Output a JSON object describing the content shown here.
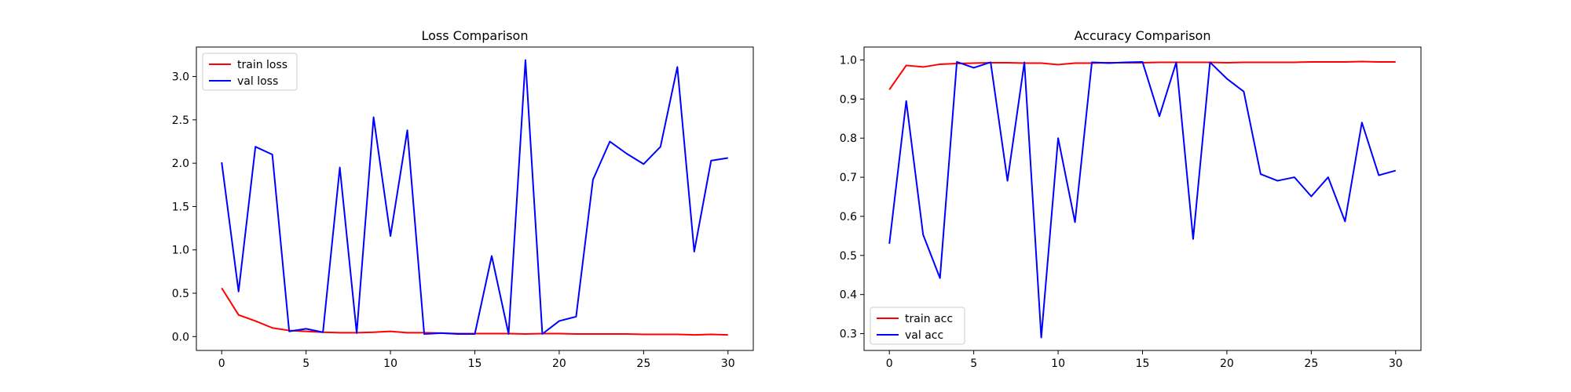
{
  "chart_data": [
    {
      "type": "line",
      "title": "Loss Comparison",
      "xlabel": "",
      "ylabel": "",
      "xlim": [
        -1.5,
        31.5
      ],
      "ylim": [
        -0.16,
        3.34
      ],
      "xticks": [
        0,
        5,
        10,
        15,
        20,
        25,
        30
      ],
      "yticks": [
        0.0,
        0.5,
        1.0,
        1.5,
        2.0,
        2.5,
        3.0
      ],
      "ytick_format": 1,
      "grid": false,
      "legend": "upper-left",
      "x": [
        0,
        1,
        2,
        3,
        4,
        5,
        6,
        7,
        8,
        9,
        10,
        11,
        12,
        13,
        14,
        15,
        16,
        17,
        18,
        19,
        20,
        21,
        22,
        23,
        24,
        25,
        26,
        27,
        28,
        29,
        30
      ],
      "series": [
        {
          "name": "train loss",
          "color": "#ff0000",
          "values": [
            0.56,
            0.25,
            0.18,
            0.1,
            0.07,
            0.06,
            0.05,
            0.045,
            0.045,
            0.05,
            0.06,
            0.045,
            0.045,
            0.04,
            0.035,
            0.035,
            0.035,
            0.035,
            0.03,
            0.035,
            0.035,
            0.03,
            0.03,
            0.03,
            0.03,
            0.025,
            0.025,
            0.025,
            0.02,
            0.025,
            0.02
          ]
        },
        {
          "name": "val loss",
          "color": "#0000ff",
          "values": [
            2.01,
            0.52,
            2.19,
            2.1,
            0.06,
            0.09,
            0.05,
            1.95,
            0.04,
            2.53,
            1.16,
            2.38,
            0.03,
            0.04,
            0.03,
            0.03,
            0.93,
            0.03,
            3.19,
            0.03,
            0.18,
            0.23,
            1.81,
            2.25,
            2.11,
            1.99,
            2.19,
            3.11,
            0.98,
            2.03,
            2.06
          ]
        }
      ]
    },
    {
      "type": "line",
      "title": "Accuracy Comparison",
      "xlabel": "",
      "ylabel": "",
      "xlim": [
        -1.5,
        31.5
      ],
      "ylim": [
        0.257,
        1.033
      ],
      "xticks": [
        0,
        5,
        10,
        15,
        20,
        25,
        30
      ],
      "yticks": [
        0.3,
        0.4,
        0.5,
        0.6,
        0.7,
        0.8,
        0.9,
        1.0
      ],
      "ytick_format": 1,
      "grid": false,
      "legend": "lower-left",
      "x": [
        0,
        1,
        2,
        3,
        4,
        5,
        6,
        7,
        8,
        9,
        10,
        11,
        12,
        13,
        14,
        15,
        16,
        17,
        18,
        19,
        20,
        21,
        22,
        23,
        24,
        25,
        26,
        27,
        28,
        29,
        30
      ],
      "series": [
        {
          "name": "train acc",
          "color": "#ff0000",
          "values": [
            0.924,
            0.986,
            0.982,
            0.989,
            0.991,
            0.992,
            0.993,
            0.993,
            0.992,
            0.992,
            0.988,
            0.992,
            0.992,
            0.993,
            0.993,
            0.993,
            0.994,
            0.994,
            0.994,
            0.994,
            0.993,
            0.994,
            0.994,
            0.994,
            0.994,
            0.995,
            0.995,
            0.995,
            0.996,
            0.995,
            0.995
          ]
        },
        {
          "name": "val acc",
          "color": "#0000ff",
          "values": [
            0.53,
            0.895,
            0.553,
            0.442,
            0.995,
            0.98,
            0.994,
            0.691,
            0.994,
            0.29,
            0.8,
            0.585,
            0.994,
            0.992,
            0.994,
            0.995,
            0.856,
            0.994,
            0.542,
            0.994,
            0.952,
            0.919,
            0.708,
            0.691,
            0.7,
            0.651,
            0.7,
            0.587,
            0.84,
            0.705,
            0.717
          ]
        }
      ]
    }
  ]
}
